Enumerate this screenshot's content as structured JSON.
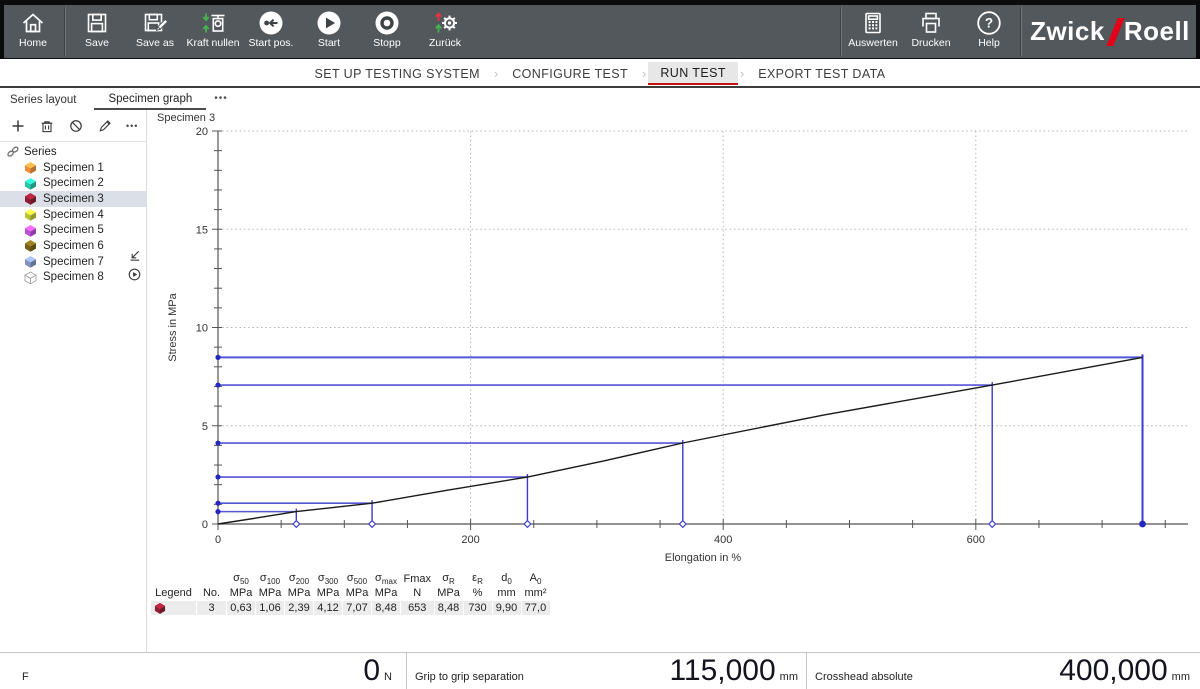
{
  "toolbar": {
    "bg": "#53585c",
    "left": [
      {
        "label": "Home"
      },
      {
        "label": "Save"
      },
      {
        "label": "Save as"
      },
      {
        "label": "Kraft nullen"
      },
      {
        "label": "Start pos."
      },
      {
        "label": "Start"
      },
      {
        "label": "Stopp"
      },
      {
        "label": "Zurück"
      }
    ],
    "right": [
      {
        "label": "Auswerten"
      },
      {
        "label": "Drucken"
      },
      {
        "label": "Help"
      }
    ],
    "logo": {
      "part1": "Zwick",
      "part2": "Roell",
      "slash_color": "#e2001a"
    }
  },
  "main_tabs": {
    "items": [
      "SET UP TESTING SYSTEM",
      "CONFIGURE TEST",
      "RUN TEST",
      "EXPORT TEST DATA"
    ],
    "active_index": 2,
    "separator": "›",
    "active_underline_color": "#c21111"
  },
  "view_tabs": {
    "items": [
      "Series layout",
      "Specimen graph"
    ],
    "active_index": 1,
    "more": "•••"
  },
  "sidebar": {
    "tools_more": "•••",
    "root_label": "Series",
    "items": [
      {
        "label": "Specimen 1",
        "color": "#ef8f3a",
        "selected": false
      },
      {
        "label": "Specimen 2",
        "color": "#27c5a5",
        "selected": false
      },
      {
        "label": "Specimen 3",
        "color": "#8f1d33",
        "selected": true
      },
      {
        "label": "Specimen 4",
        "color": "#b9c337",
        "selected": false
      },
      {
        "label": "Specimen 5",
        "color": "#b94fd6",
        "selected": false
      },
      {
        "label": "Specimen 6",
        "color": "#756018",
        "selected": false
      },
      {
        "label": "Specimen 7",
        "color": "#8094c0",
        "selected": false
      },
      {
        "label": "Specimen 8",
        "color": "#ffffff",
        "selected": false
      }
    ]
  },
  "chart_data": {
    "type": "line",
    "title": "Specimen 3",
    "xlabel": "Elongation in %",
    "ylabel": "Stress in MPa",
    "xlim": [
      0,
      770
    ],
    "ylim": [
      0,
      20
    ],
    "x_major_ticks": [
      0,
      200,
      400,
      600
    ],
    "x_minor_step": 50,
    "x_minor_max": 750,
    "y_major_ticks": [
      0,
      5,
      10,
      15,
      20
    ],
    "y_minor_step": 1,
    "grid_style": "dotted",
    "grid_color": "#b5b5b5",
    "axis_color": "#555555",
    "curve_color": "#1a1a1a",
    "marker_line_color": "#5555d8",
    "marker_fill_color": "#2626c0",
    "series": [
      {
        "name": "Specimen 3",
        "points": [
          [
            0,
            0
          ],
          [
            30,
            0.3
          ],
          [
            62,
            0.63
          ],
          [
            122,
            1.06
          ],
          [
            180,
            1.7
          ],
          [
            245,
            2.39
          ],
          [
            305,
            3.2
          ],
          [
            368,
            4.12
          ],
          [
            480,
            5.55
          ],
          [
            613,
            7.07
          ],
          [
            732,
            8.48
          ]
        ]
      }
    ],
    "marker_lines": [
      {
        "x": 62,
        "y": 0.63,
        "break_point": false
      },
      {
        "x": 122,
        "y": 1.06,
        "break_point": false
      },
      {
        "x": 245,
        "y": 2.39,
        "break_point": false
      },
      {
        "x": 368,
        "y": 4.12,
        "break_point": false
      },
      {
        "x": 613,
        "y": 7.07,
        "break_point": false
      },
      {
        "x": 732,
        "y": 8.48,
        "break_point": true
      }
    ]
  },
  "results_table": {
    "columns": [
      {
        "base": "",
        "sub": "",
        "unit": "Legend"
      },
      {
        "base": "",
        "sub": "",
        "unit": "No."
      },
      {
        "base": "σ",
        "sub": "50",
        "unit": "MPa"
      },
      {
        "base": "σ",
        "sub": "100",
        "unit": "MPa"
      },
      {
        "base": "σ",
        "sub": "200",
        "unit": "MPa"
      },
      {
        "base": "σ",
        "sub": "300",
        "unit": "MPa"
      },
      {
        "base": "σ",
        "sub": "500",
        "unit": "MPa"
      },
      {
        "base": "σ",
        "sub": "max",
        "unit": "MPa"
      },
      {
        "base": "Fmax",
        "sub": "",
        "unit": "N"
      },
      {
        "base": "σ",
        "sub": "R",
        "unit": "MPa"
      },
      {
        "base": "ε",
        "sub": "R",
        "unit": "%"
      },
      {
        "base": "d",
        "sub": "0",
        "unit": "mm"
      },
      {
        "base": "A",
        "sub": "0",
        "unit": "mm²"
      }
    ],
    "rows": [
      {
        "legend_color": "#8f1d33",
        "values": [
          "3",
          "0,63",
          "1,06",
          "2,39",
          "4,12",
          "7,07",
          "8,48",
          "653",
          "8,48",
          "730",
          "9,90",
          "77,0"
        ]
      }
    ]
  },
  "status_bar": {
    "sections": [
      {
        "label": "F",
        "value": "0",
        "unit": "N"
      },
      {
        "label": "Grip to grip separation",
        "value": "115,000",
        "unit": "mm"
      },
      {
        "label": "Crosshead absolute",
        "value": "400,000",
        "unit": "mm"
      }
    ]
  }
}
